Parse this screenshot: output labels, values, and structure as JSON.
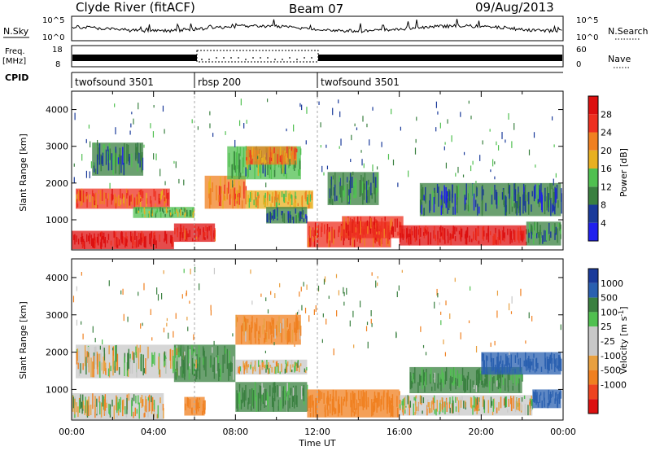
{
  "header": {
    "station": "Clyde River (fitACF)",
    "beam": "Beam 07",
    "date": "09/Aug/2013"
  },
  "noise_panel": {
    "left_label": "N.Sky",
    "right_label": "N.Search",
    "left_ticks": [
      "10^5",
      "10^0"
    ],
    "right_ticks": [
      "10^5",
      "10^0"
    ]
  },
  "freq_panel": {
    "left_label_line1": "Freq.",
    "left_label_line2": "[MHz]",
    "left_ticks": [
      "18",
      "8"
    ],
    "right_label": "Nave",
    "right_ticks": [
      "60",
      "0"
    ]
  },
  "cpid": {
    "label": "CPID",
    "segments": [
      {
        "name": "twofsound 3501",
        "start": 0,
        "end": 6
      },
      {
        "name": "rbsp 200",
        "start": 6,
        "end": 12
      },
      {
        "name": "twofsound 3501",
        "start": 12,
        "end": 24
      }
    ]
  },
  "colors": {
    "power": [
      "#2020ee",
      "#1a3a9a",
      "#3a8040",
      "#50c050",
      "#e8b020",
      "#f08020",
      "#ee3020",
      "#dd1010"
    ],
    "velocity": [
      "#dd1010",
      "#ee4420",
      "#f08020",
      "#e8a040",
      "#c8c8c8",
      "#c8c8c8",
      "#50c050",
      "#3a8040",
      "#2a60b0",
      "#1a3a9a"
    ]
  },
  "chart_data": [
    {
      "type": "heatmap",
      "name": "power",
      "xlabel": "",
      "ylabel": "Slant Range [km]",
      "xlim": [
        0,
        24
      ],
      "ylim": [
        180,
        4500
      ],
      "yticks": [
        1000,
        2000,
        3000,
        4000
      ],
      "colorbar": {
        "label": "Power [dB]",
        "range": [
          0,
          32
        ],
        "ticks": [
          "4",
          "8",
          "12",
          "16",
          "20",
          "24",
          "28"
        ]
      },
      "regions": [
        {
          "t0": 0.0,
          "t1": 5.0,
          "r0": 200,
          "r1": 700,
          "level": 30
        },
        {
          "t0": 5.0,
          "t1": 7.0,
          "r0": 400,
          "r1": 900,
          "level": 28
        },
        {
          "t0": 0.2,
          "t1": 4.8,
          "r0": 1300,
          "r1": 1850,
          "level": 24
        },
        {
          "t0": 3.0,
          "t1": 6.0,
          "r0": 1050,
          "r1": 1350,
          "level": 14
        },
        {
          "t0": 6.5,
          "t1": 8.5,
          "r0": 1300,
          "r1": 2200,
          "level": 22
        },
        {
          "t0": 8.5,
          "t1": 11.8,
          "r0": 1300,
          "r1": 1800,
          "level": 18
        },
        {
          "t0": 7.6,
          "t1": 11.2,
          "r0": 2100,
          "r1": 3000,
          "level": 12
        },
        {
          "t0": 8.5,
          "t1": 11.0,
          "r0": 2500,
          "r1": 3000,
          "level": 22
        },
        {
          "t0": 9.5,
          "t1": 11.5,
          "r0": 900,
          "r1": 1350,
          "level": 8
        },
        {
          "t0": 11.5,
          "t1": 15.6,
          "r0": 250,
          "r1": 950,
          "level": 26
        },
        {
          "t0": 13.2,
          "t1": 16.2,
          "r0": 500,
          "r1": 1100,
          "level": 27
        },
        {
          "t0": 16.0,
          "t1": 22.2,
          "r0": 300,
          "r1": 850,
          "level": 29
        },
        {
          "t0": 22.2,
          "t1": 23.9,
          "r0": 300,
          "r1": 950,
          "level": 10
        },
        {
          "t0": 17.0,
          "t1": 23.9,
          "r0": 1100,
          "r1": 2000,
          "level": 8
        },
        {
          "t0": 12.5,
          "t1": 15.0,
          "r0": 1400,
          "r1": 2300,
          "level": 10
        },
        {
          "t0": 1.0,
          "t1": 3.5,
          "r0": 2200,
          "r1": 3100,
          "level": 8
        }
      ]
    },
    {
      "type": "heatmap",
      "name": "velocity",
      "xlabel": "Time UT",
      "ylabel": "Slant Range [km]",
      "xlim": [
        0,
        24
      ],
      "ylim": [
        180,
        4500
      ],
      "xticks": [
        "00:00",
        "04:00",
        "08:00",
        "12:00",
        "16:00",
        "20:00",
        "00:00"
      ],
      "yticks": [
        1000,
        2000,
        3000,
        4000
      ],
      "colorbar": {
        "label": "Velocity [m s^-1]",
        "ticks": [
          "1000",
          "500",
          "100",
          "25",
          "-25",
          "-100",
          "-500",
          "-1000"
        ]
      },
      "regions": [
        {
          "t0": 0.2,
          "t1": 5.5,
          "r0": 1300,
          "r1": 2200,
          "level": 0
        },
        {
          "t0": 0.0,
          "t1": 4.5,
          "r0": 200,
          "r1": 900,
          "level": 0
        },
        {
          "t0": 5.5,
          "t1": 6.5,
          "r0": 300,
          "r1": 800,
          "level": -200
        },
        {
          "t0": 5.0,
          "t1": 8.0,
          "r0": 1200,
          "r1": 2200,
          "level": 120
        },
        {
          "t0": 8.0,
          "t1": 11.5,
          "r0": 1400,
          "r1": 1800,
          "level": 0
        },
        {
          "t0": 8.0,
          "t1": 11.2,
          "r0": 2200,
          "r1": 3000,
          "level": -150
        },
        {
          "t0": 8.0,
          "t1": 11.5,
          "r0": 400,
          "r1": 1200,
          "level": 120
        },
        {
          "t0": 11.5,
          "t1": 16.0,
          "r0": 250,
          "r1": 1000,
          "level": -250
        },
        {
          "t0": 16.0,
          "t1": 22.5,
          "r0": 300,
          "r1": 850,
          "level": 0
        },
        {
          "t0": 16.5,
          "t1": 22.0,
          "r0": 900,
          "r1": 1600,
          "level": 150
        },
        {
          "t0": 20.0,
          "t1": 23.9,
          "r0": 1400,
          "r1": 2000,
          "level": 700
        },
        {
          "t0": 22.5,
          "t1": 23.9,
          "r0": 500,
          "r1": 1000,
          "level": 800
        }
      ]
    }
  ]
}
